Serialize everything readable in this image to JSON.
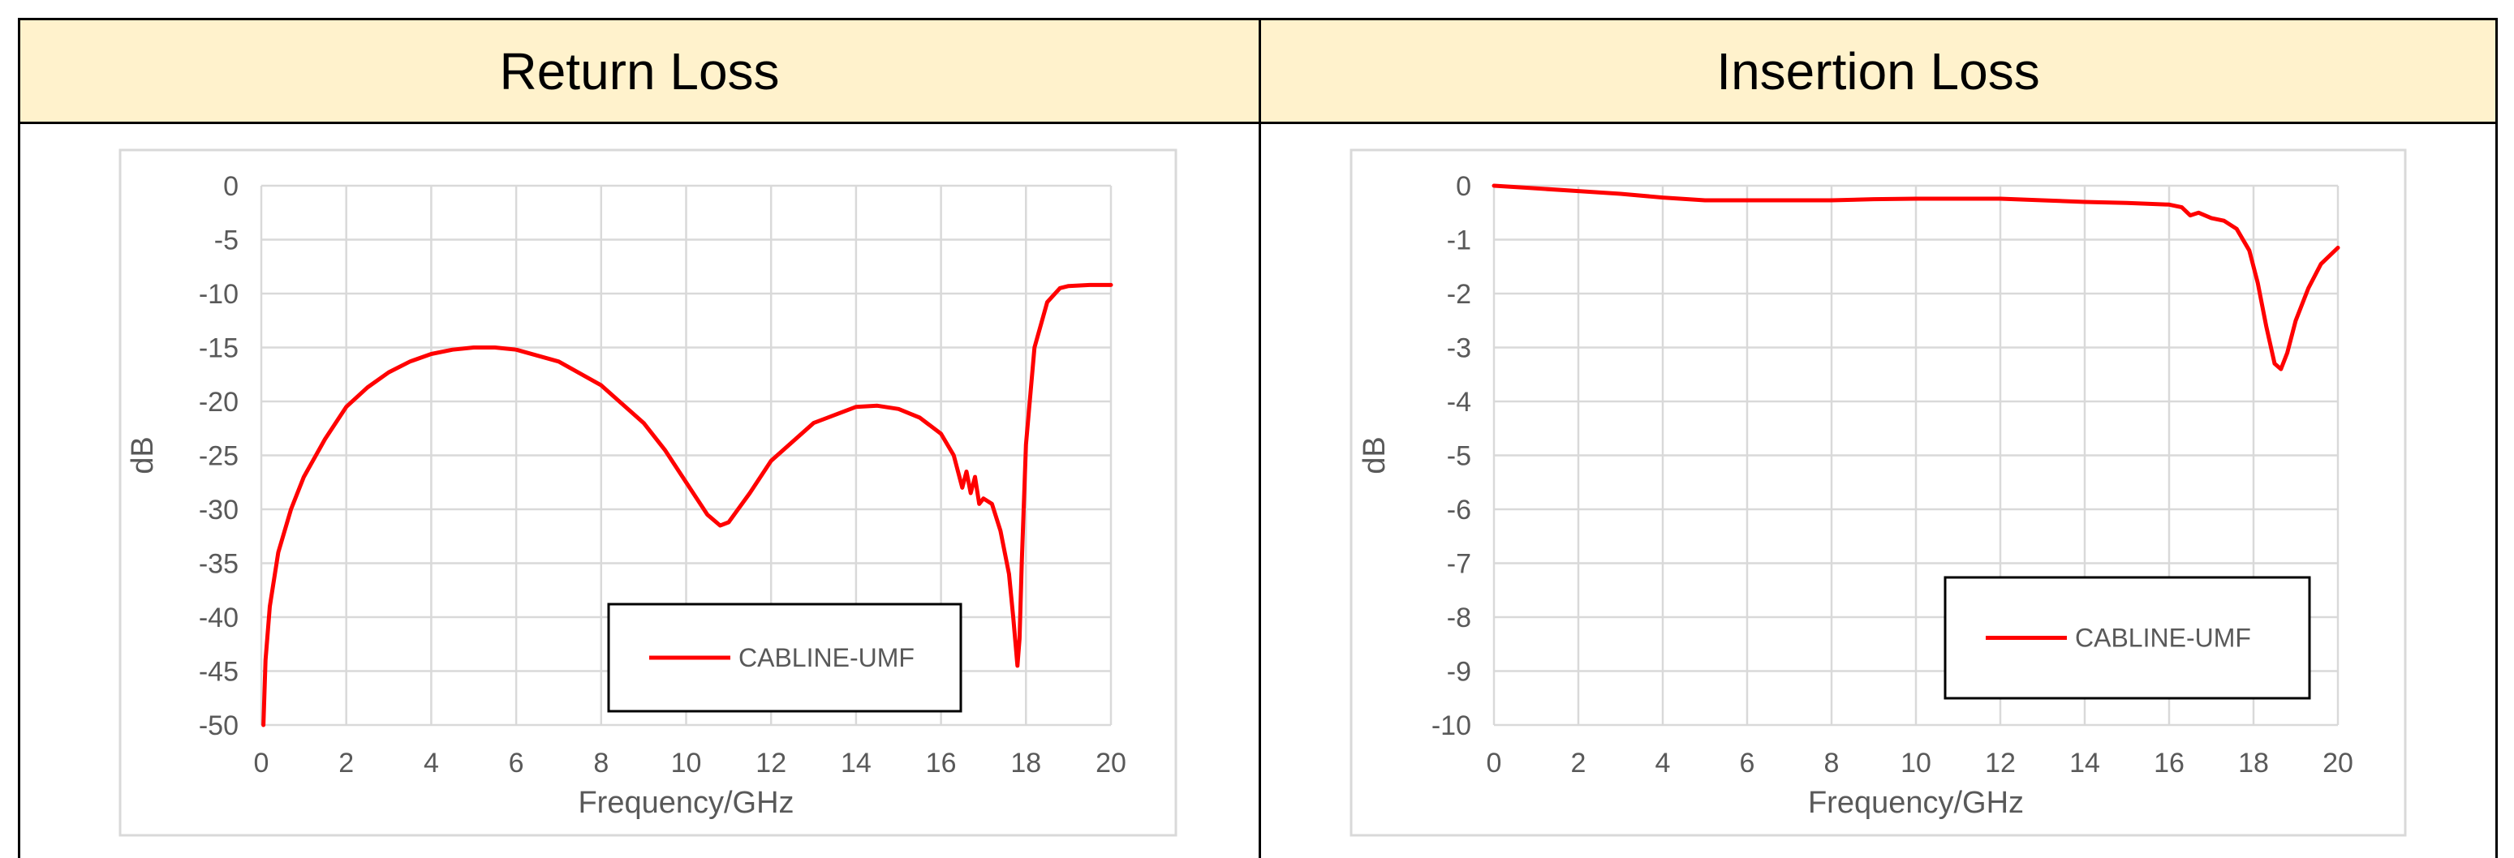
{
  "headers": {
    "left": "Return Loss",
    "right": "Insertion Loss"
  },
  "colors": {
    "header_bg": "#FFF2CC",
    "series": "#FF0000",
    "grid": "#D9D9D9",
    "tick": "#595959"
  },
  "chart_data": [
    {
      "type": "line",
      "title": "Return Loss",
      "xlabel": "Frequency/GHz",
      "ylabel": "dB",
      "xlim": [
        0,
        20
      ],
      "ylim": [
        -50,
        0
      ],
      "xticks": [
        0,
        2,
        4,
        6,
        8,
        10,
        12,
        14,
        16,
        18,
        20
      ],
      "yticks": [
        0,
        -5,
        -10,
        -15,
        -20,
        -25,
        -30,
        -35,
        -40,
        -45,
        -50
      ],
      "grid": true,
      "legend_position": "bottom-right",
      "series": [
        {
          "name": "CABLINE-UMF",
          "color": "#FF0000",
          "x": [
            0.05,
            0.1,
            0.2,
            0.4,
            0.7,
            1.0,
            1.5,
            2.0,
            2.5,
            3.0,
            3.5,
            4.0,
            4.5,
            5.0,
            5.5,
            6.0,
            7.0,
            8.0,
            9.0,
            9.5,
            10.0,
            10.5,
            10.8,
            11.0,
            11.5,
            12.0,
            13.0,
            14.0,
            14.5,
            15.0,
            15.5,
            16.0,
            16.3,
            16.5,
            16.6,
            16.7,
            16.8,
            16.9,
            17.0,
            17.2,
            17.4,
            17.6,
            17.7,
            17.8,
            17.85,
            17.9,
            18.0,
            18.2,
            18.5,
            18.8,
            19.0,
            19.5,
            20.0
          ],
          "y": [
            -50,
            -44,
            -39,
            -34,
            -30,
            -27,
            -23.5,
            -20.5,
            -18.7,
            -17.3,
            -16.3,
            -15.6,
            -15.2,
            -15.0,
            -15.0,
            -15.2,
            -16.3,
            -18.5,
            -22,
            -24.5,
            -27.5,
            -30.5,
            -31.5,
            -31.2,
            -28.5,
            -25.5,
            -22,
            -20.5,
            -20.4,
            -20.7,
            -21.5,
            -23.0,
            -25.0,
            -28.0,
            -26.5,
            -28.5,
            -27.0,
            -29.5,
            -29.0,
            -29.5,
            -32.0,
            -36.0,
            -40.0,
            -44.5,
            -42.0,
            -35.0,
            -24.0,
            -15.0,
            -10.8,
            -9.5,
            -9.3,
            -9.2,
            -9.2
          ]
        }
      ]
    },
    {
      "type": "line",
      "title": "Insertion Loss",
      "xlabel": "Frequency/GHz",
      "ylabel": "dB",
      "xlim": [
        0,
        20
      ],
      "ylim": [
        -10,
        0
      ],
      "xticks": [
        0,
        2,
        4,
        6,
        8,
        10,
        12,
        14,
        16,
        18,
        20
      ],
      "yticks": [
        0,
        -1,
        -2,
        -3,
        -4,
        -5,
        -6,
        -7,
        -8,
        -9,
        -10
      ],
      "grid": true,
      "legend_position": "bottom-right",
      "series": [
        {
          "name": "CABLINE-UMF",
          "color": "#FF0000",
          "x": [
            0,
            1,
            2,
            3,
            4,
            5,
            6,
            7,
            8,
            9,
            10,
            11,
            12,
            13,
            14,
            15,
            16,
            16.3,
            16.5,
            16.7,
            17.0,
            17.3,
            17.6,
            17.9,
            18.1,
            18.3,
            18.5,
            18.65,
            18.8,
            19.0,
            19.3,
            19.6,
            20.0
          ],
          "y": [
            0,
            -0.05,
            -0.1,
            -0.15,
            -0.22,
            -0.27,
            -0.27,
            -0.27,
            -0.27,
            -0.25,
            -0.24,
            -0.24,
            -0.24,
            -0.27,
            -0.3,
            -0.32,
            -0.35,
            -0.4,
            -0.55,
            -0.5,
            -0.6,
            -0.65,
            -0.8,
            -1.2,
            -1.8,
            -2.6,
            -3.3,
            -3.4,
            -3.1,
            -2.5,
            -1.9,
            -1.45,
            -1.15
          ]
        }
      ]
    }
  ]
}
